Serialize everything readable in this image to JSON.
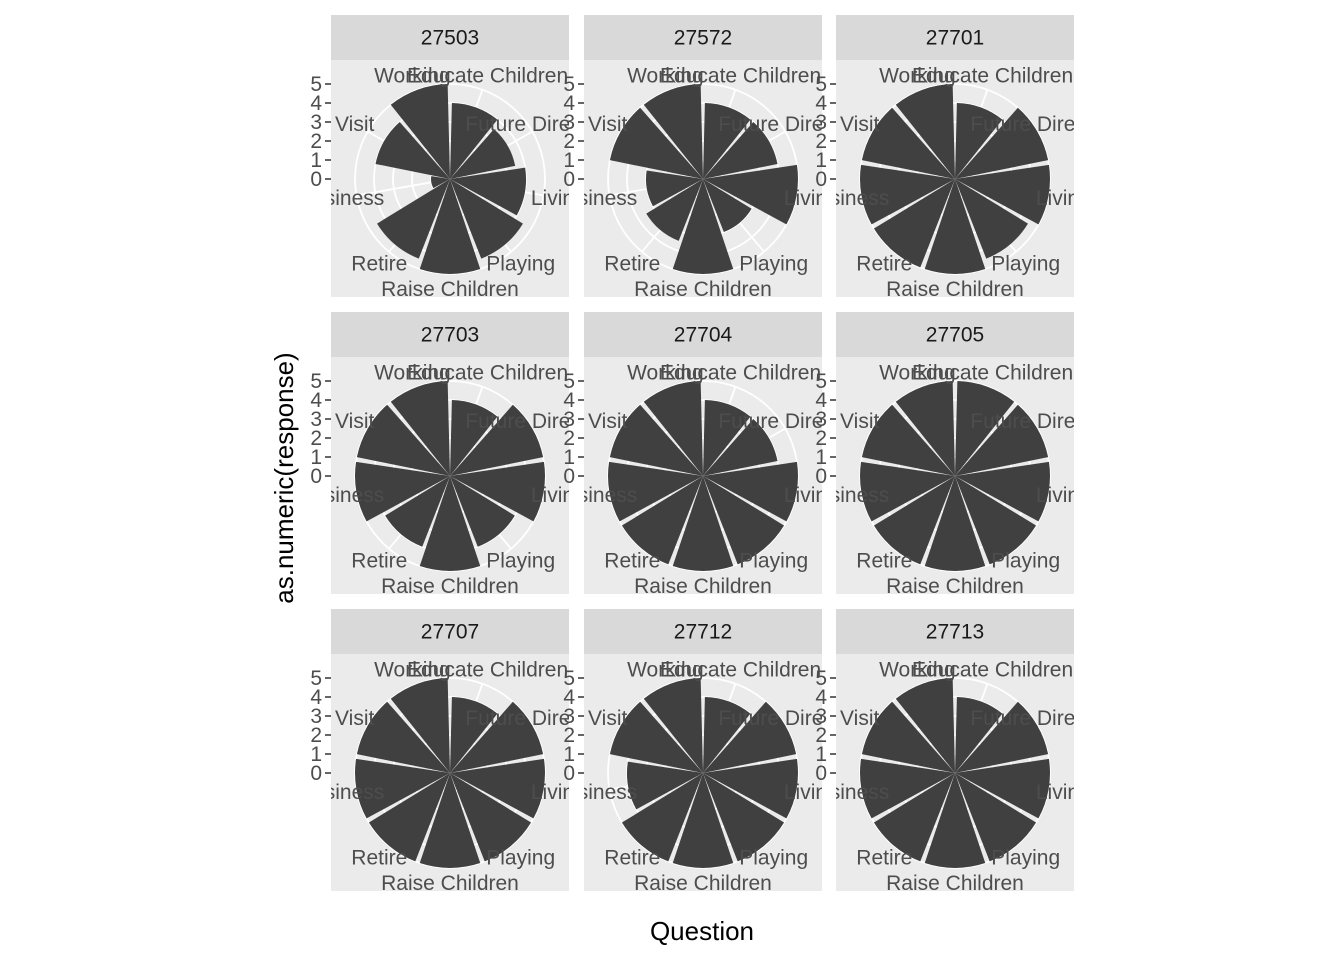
{
  "chart_data": {
    "type": "bar",
    "coord": "polar",
    "facet_layout": "3x3",
    "xlabel": "Question",
    "ylabel": "as.numeric(response)",
    "categories": [
      "Educate Children",
      "Future Directions",
      "Living",
      "Playing",
      "Raise Children",
      "Retire",
      "Business",
      "Visit",
      "Working"
    ],
    "ytick_labels": [
      "0",
      "1",
      "2",
      "3",
      "4",
      "5"
    ],
    "ylim": [
      0,
      5
    ],
    "grid": true,
    "bar_color": "#404040",
    "panel_background": "#ebebeb",
    "strip_background": "#d9d9d9",
    "grid_color": "#ffffff",
    "facets": [
      {
        "name": "27503",
        "values": [
          4,
          3.5,
          4,
          4.5,
          5,
          4.5,
          1,
          4,
          5
        ]
      },
      {
        "name": "27572",
        "values": [
          4,
          4,
          5,
          3,
          5,
          3.5,
          3,
          5,
          5
        ]
      },
      {
        "name": "27701",
        "values": [
          4,
          5,
          5,
          4.5,
          5,
          5,
          5,
          5,
          5
        ]
      },
      {
        "name": "27703",
        "values": [
          4,
          5,
          5,
          4,
          5,
          4,
          5,
          5,
          5
        ]
      },
      {
        "name": "27704",
        "values": [
          4,
          4,
          5,
          5,
          5,
          5,
          5,
          5,
          5
        ]
      },
      {
        "name": "27705",
        "values": [
          5,
          5,
          5,
          5,
          5,
          5,
          5,
          5,
          5
        ]
      },
      {
        "name": "27707",
        "values": [
          4,
          5,
          5,
          5,
          5,
          5,
          5,
          5,
          5
        ]
      },
      {
        "name": "27712",
        "values": [
          4,
          5,
          5,
          5,
          5,
          5,
          4,
          5,
          5
        ]
      },
      {
        "name": "27713",
        "values": [
          4,
          5,
          5,
          5,
          5,
          5,
          5,
          5,
          5
        ]
      }
    ]
  }
}
